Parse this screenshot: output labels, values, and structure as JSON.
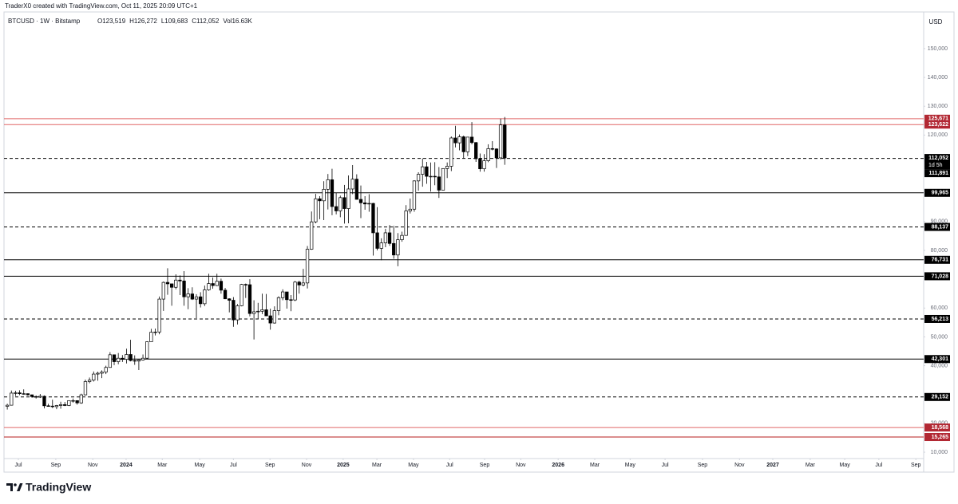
{
  "header": {
    "caption": "TraderX0 created with TradingView.com, Oct 11, 2025 20:09 UTC+1"
  },
  "footer": {
    "brand": "TradingView"
  },
  "chart_data": {
    "type": "candlestick",
    "title": "BTCUSD · 1W · Bitstamp",
    "ohlc_legend": [
      "O123,519",
      "H126,272",
      "L109,683",
      "C112,052",
      "Vol16.63K"
    ],
    "y_unit": "USD",
    "up_color": "#ffffff",
    "down_color": "#000000",
    "open": [
      25900,
      26300,
      30500,
      30600,
      30300,
      30300,
      29900,
      29300,
      29100,
      29400,
      26100,
      26000,
      25800,
      26200,
      26500,
      26200,
      27900,
      27900,
      27100,
      29900,
      34500,
      35000,
      37100,
      37400,
      37800,
      39400,
      43800,
      41400,
      42600,
      42200,
      43900,
      41800,
      41600,
      42000,
      42600,
      48300,
      51600,
      51700,
      63100,
      68900,
      68400,
      67200,
      69700,
      69400,
      63900,
      64900,
      63100,
      63900,
      61500,
      66300,
      68500,
      67800,
      69300,
      66200,
      63200,
      62700,
      55900,
      60800,
      68200,
      68100,
      58100,
      58700,
      58900,
      59400,
      57300,
      54800,
      59100,
      63600,
      65600,
      62900,
      62800,
      69000,
      68000,
      68700,
      80400,
      89900,
      97900,
      97200,
      101200,
      104500,
      95200,
      93700,
      98300,
      94500,
      101300,
      104700,
      97700,
      96500,
      96100,
      96300,
      86100,
      80700,
      82600,
      86100,
      82400,
      78400,
      83700,
      85200,
      93700,
      94300,
      104100,
      106400,
      109000,
      105700,
      105700,
      105500,
      100900,
      108400,
      109200,
      119000,
      117300,
      119400,
      114200,
      119300,
      117400,
      111800,
      108300,
      111100,
      115300,
      115200,
      112100,
      123519
    ],
    "high": [
      26800,
      31400,
      31300,
      31500,
      31800,
      30400,
      30000,
      29700,
      30200,
      29700,
      26800,
      28200,
      26400,
      27500,
      27400,
      28000,
      28600,
      27900,
      30300,
      35200,
      35900,
      38000,
      37900,
      38400,
      40000,
      44700,
      43800,
      44400,
      43700,
      45900,
      49000,
      43600,
      42200,
      43900,
      48500,
      52800,
      52900,
      64000,
      69200,
      73800,
      68500,
      71700,
      71300,
      72800,
      66900,
      67200,
      64800,
      65500,
      67800,
      71900,
      70600,
      71900,
      70200,
      67000,
      63400,
      63800,
      61400,
      68400,
      68500,
      70000,
      62700,
      61800,
      65000,
      64900,
      59800,
      60600,
      64100,
      66500,
      65600,
      64500,
      69400,
      69500,
      73600,
      81500,
      93500,
      99600,
      98800,
      104000,
      106500,
      108300,
      99900,
      99000,
      102700,
      106000,
      109600,
      106400,
      102500,
      98800,
      99500,
      96500,
      95000,
      84200,
      87500,
      88800,
      88500,
      86000,
      86500,
      95700,
      98000,
      104300,
      107100,
      111900,
      110700,
      110500,
      110600,
      108900,
      108500,
      110500,
      119500,
      123200,
      120200,
      119800,
      119300,
      124500,
      117600,
      113600,
      113400,
      116800,
      117900,
      115400,
      125700,
      126272
    ],
    "low": [
      24800,
      26200,
      29500,
      29800,
      29900,
      29600,
      28900,
      28600,
      28800,
      25200,
      25800,
      25300,
      24900,
      25100,
      26000,
      26000,
      27200,
      26500,
      26800,
      29700,
      33900,
      34500,
      34800,
      35700,
      37100,
      39300,
      40200,
      40500,
      41300,
      40800,
      41500,
      40300,
      38500,
      41800,
      42300,
      48300,
      50500,
      50900,
      59000,
      64600,
      60800,
      66500,
      64500,
      60800,
      59600,
      62800,
      56500,
      60200,
      60700,
      66000,
      66700,
      67600,
      65000,
      63100,
      58500,
      53500,
      54300,
      60600,
      63500,
      57100,
      49100,
      56100,
      57900,
      57200,
      52500,
      54600,
      57500,
      62700,
      59800,
      58900,
      62400,
      65000,
      67500,
      66800,
      80200,
      89400,
      90800,
      90500,
      94200,
      92200,
      92500,
      91500,
      89300,
      89400,
      99500,
      97600,
      91200,
      94100,
      93400,
      78200,
      80000,
      76600,
      81100,
      81600,
      77100,
      74500,
      83000,
      85100,
      92800,
      93400,
      100700,
      102100,
      103100,
      100400,
      102600,
      98200,
      100900,
      105100,
      107500,
      115700,
      114700,
      112000,
      112700,
      116800,
      110700,
      107300,
      107300,
      110600,
      114700,
      108600,
      111500,
      109683
    ],
    "close": [
      26300,
      30500,
      30600,
      30300,
      30300,
      29900,
      29300,
      29100,
      29400,
      26100,
      26000,
      25800,
      26200,
      26500,
      26200,
      27900,
      27900,
      27100,
      29900,
      34500,
      35000,
      37100,
      37400,
      37800,
      39400,
      43800,
      41400,
      42600,
      42200,
      43900,
      41800,
      41600,
      42000,
      42600,
      48300,
      51600,
      51700,
      63100,
      68900,
      68400,
      67200,
      69700,
      69400,
      63900,
      64900,
      63100,
      63900,
      61500,
      66300,
      68500,
      67800,
      69300,
      66200,
      63200,
      62700,
      55900,
      60800,
      68200,
      68100,
      58100,
      58700,
      58900,
      59400,
      57300,
      54800,
      59100,
      63600,
      65600,
      62900,
      62800,
      69000,
      68000,
      68700,
      80400,
      89900,
      97900,
      97200,
      101200,
      104500,
      95200,
      93700,
      98300,
      94500,
      101300,
      104700,
      97700,
      96500,
      96100,
      96300,
      86100,
      80700,
      82600,
      86100,
      82400,
      78400,
      83700,
      85200,
      93700,
      94300,
      104100,
      106400,
      109000,
      105700,
      105700,
      105500,
      100900,
      108400,
      109200,
      119000,
      117300,
      119400,
      114200,
      119300,
      117400,
      111800,
      108300,
      111100,
      115300,
      115200,
      112100,
      123519,
      112052
    ],
    "xlim": [
      -0.8,
      222.9
    ],
    "ylim": [
      7800,
      162700
    ],
    "xticks": [
      {
        "value": 2.7,
        "label": "Jul"
      },
      {
        "value": 11.8,
        "label": "Sep"
      },
      {
        "value": 20.8,
        "label": "Nov"
      },
      {
        "value": 28.9,
        "label": "2024"
      },
      {
        "value": 37.7,
        "label": "Mar"
      },
      {
        "value": 46.8,
        "label": "May"
      },
      {
        "value": 55.0,
        "label": "Jul"
      },
      {
        "value": 63.9,
        "label": "Sep"
      },
      {
        "value": 72.8,
        "label": "Nov"
      },
      {
        "value": 81.7,
        "label": "2025"
      },
      {
        "value": 89.9,
        "label": "Mar"
      },
      {
        "value": 98.8,
        "label": "May"
      },
      {
        "value": 107.6,
        "label": "Jul"
      },
      {
        "value": 116.1,
        "label": "Sep"
      },
      {
        "value": 124.9,
        "label": "Nov"
      },
      {
        "value": 134.0,
        "label": "2026"
      },
      {
        "value": 142.9,
        "label": "Mar"
      },
      {
        "value": 151.5,
        "label": "May"
      },
      {
        "value": 160.0,
        "label": "Jul"
      },
      {
        "value": 169.1,
        "label": "Sep"
      },
      {
        "value": 178.1,
        "label": "Nov"
      },
      {
        "value": 186.2,
        "label": "2027"
      },
      {
        "value": 195.3,
        "label": "Mar"
      },
      {
        "value": 203.7,
        "label": "May"
      },
      {
        "value": 212.0,
        "label": "Jul"
      },
      {
        "value": 221.0,
        "label": "Sep"
      }
    ],
    "yticks": [
      {
        "value": 150000,
        "label": "150,000"
      },
      {
        "value": 140000,
        "label": "140,000"
      },
      {
        "value": 130000,
        "label": "130,000"
      },
      {
        "value": 120000,
        "label": "120,000"
      },
      {
        "value": 90000,
        "label": "90,000"
      },
      {
        "value": 80000,
        "label": "80,000"
      },
      {
        "value": 60000,
        "label": "60,000"
      },
      {
        "value": 50000,
        "label": "50,000"
      },
      {
        "value": 40000,
        "label": "40,000"
      },
      {
        "value": 20000,
        "label": "20,000"
      },
      {
        "value": 10000,
        "label": "10,000"
      }
    ],
    "levels": [
      {
        "value": 125671,
        "label": "125,671",
        "color": "#e06666",
        "style": "solid"
      },
      {
        "value": 123622,
        "label": "123,622",
        "color": "#e06666",
        "style": "solid"
      },
      {
        "value": 111891,
        "label": "111,891",
        "color": "#000000",
        "style": "dashed"
      },
      {
        "value": 99965,
        "label": "99,965",
        "color": "#000000",
        "style": "solid"
      },
      {
        "value": 88137,
        "label": "88,137",
        "color": "#000000",
        "style": "dashed"
      },
      {
        "value": 76731,
        "label": "76,731",
        "color": "#000000",
        "style": "solid"
      },
      {
        "value": 71028,
        "label": "71,028",
        "color": "#000000",
        "style": "solid"
      },
      {
        "value": 56213,
        "label": "56,213",
        "color": "#000000",
        "style": "dashed"
      },
      {
        "value": 42301,
        "label": "42,301",
        "color": "#000000",
        "style": "solid"
      },
      {
        "value": 29152,
        "label": "29,152",
        "color": "#000000",
        "style": "dashed"
      },
      {
        "value": 18568,
        "label": "18,568",
        "color": "#e06666",
        "style": "solid"
      },
      {
        "value": 15265,
        "label": "15,265",
        "color": "#b71c1c",
        "style": "solid"
      }
    ],
    "price_label": {
      "value": 112052,
      "label": "112,052",
      "countdown": "1d 5h"
    }
  }
}
